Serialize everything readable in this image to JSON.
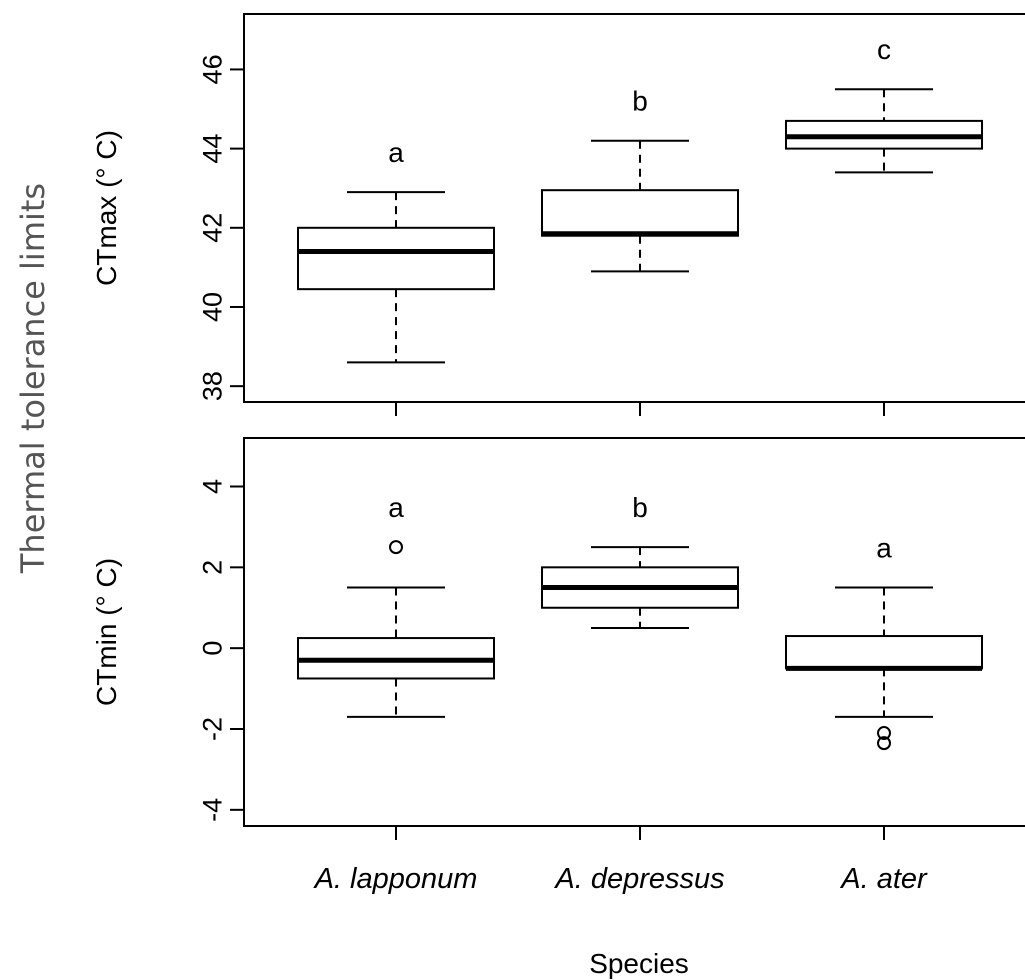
{
  "chart_data": {
    "type": "boxplot",
    "outer_ylabel": "Thermal tolerance limits",
    "xlabel": "Species",
    "categories": [
      "A. lapponum",
      "A. depressus",
      "A. ater"
    ],
    "panels": [
      {
        "ylabel": "CTmax (° C)",
        "ylim": [
          37.6,
          47.4
        ],
        "yticks": [
          38,
          40,
          42,
          44,
          46
        ],
        "yticklabels": [
          "38",
          "40",
          "42",
          "44",
          "46"
        ],
        "boxes": [
          {
            "category": "A. lapponum",
            "whisker_low": 38.6,
            "q1": 40.45,
            "median": 41.4,
            "q3": 42.0,
            "whisker_high": 42.9,
            "outliers": [],
            "group_letter": "a"
          },
          {
            "category": "A. depressus",
            "whisker_low": 40.9,
            "q1": 41.8,
            "median": 41.85,
            "q3": 42.95,
            "whisker_high": 44.2,
            "outliers": [],
            "group_letter": "b"
          },
          {
            "category": "A. ater",
            "whisker_low": 43.4,
            "q1": 44.0,
            "median": 44.3,
            "q3": 44.7,
            "whisker_high": 45.5,
            "outliers": [],
            "group_letter": "c"
          }
        ]
      },
      {
        "ylabel": "CTmin (° C)",
        "ylim": [
          -4.4,
          5.2
        ],
        "yticks": [
          -4,
          -2,
          0,
          2,
          4
        ],
        "yticklabels": [
          "-4",
          "-2",
          "0",
          "2",
          "4"
        ],
        "boxes": [
          {
            "category": "A. lapponum",
            "whisker_low": -1.7,
            "q1": -0.75,
            "median": -0.3,
            "q3": 0.25,
            "whisker_high": 1.5,
            "outliers": [
              2.5
            ],
            "group_letter": "a"
          },
          {
            "category": "A. depressus",
            "whisker_low": 0.5,
            "q1": 1.0,
            "median": 1.5,
            "q3": 2.0,
            "whisker_high": 2.5,
            "outliers": [],
            "group_letter": "b"
          },
          {
            "category": "A. ater",
            "whisker_low": -1.7,
            "q1": -0.5,
            "median": -0.5,
            "q3": 0.3,
            "whisker_high": 1.5,
            "outliers": [
              -2.1,
              -2.35
            ],
            "group_letter": "a"
          }
        ]
      }
    ]
  }
}
